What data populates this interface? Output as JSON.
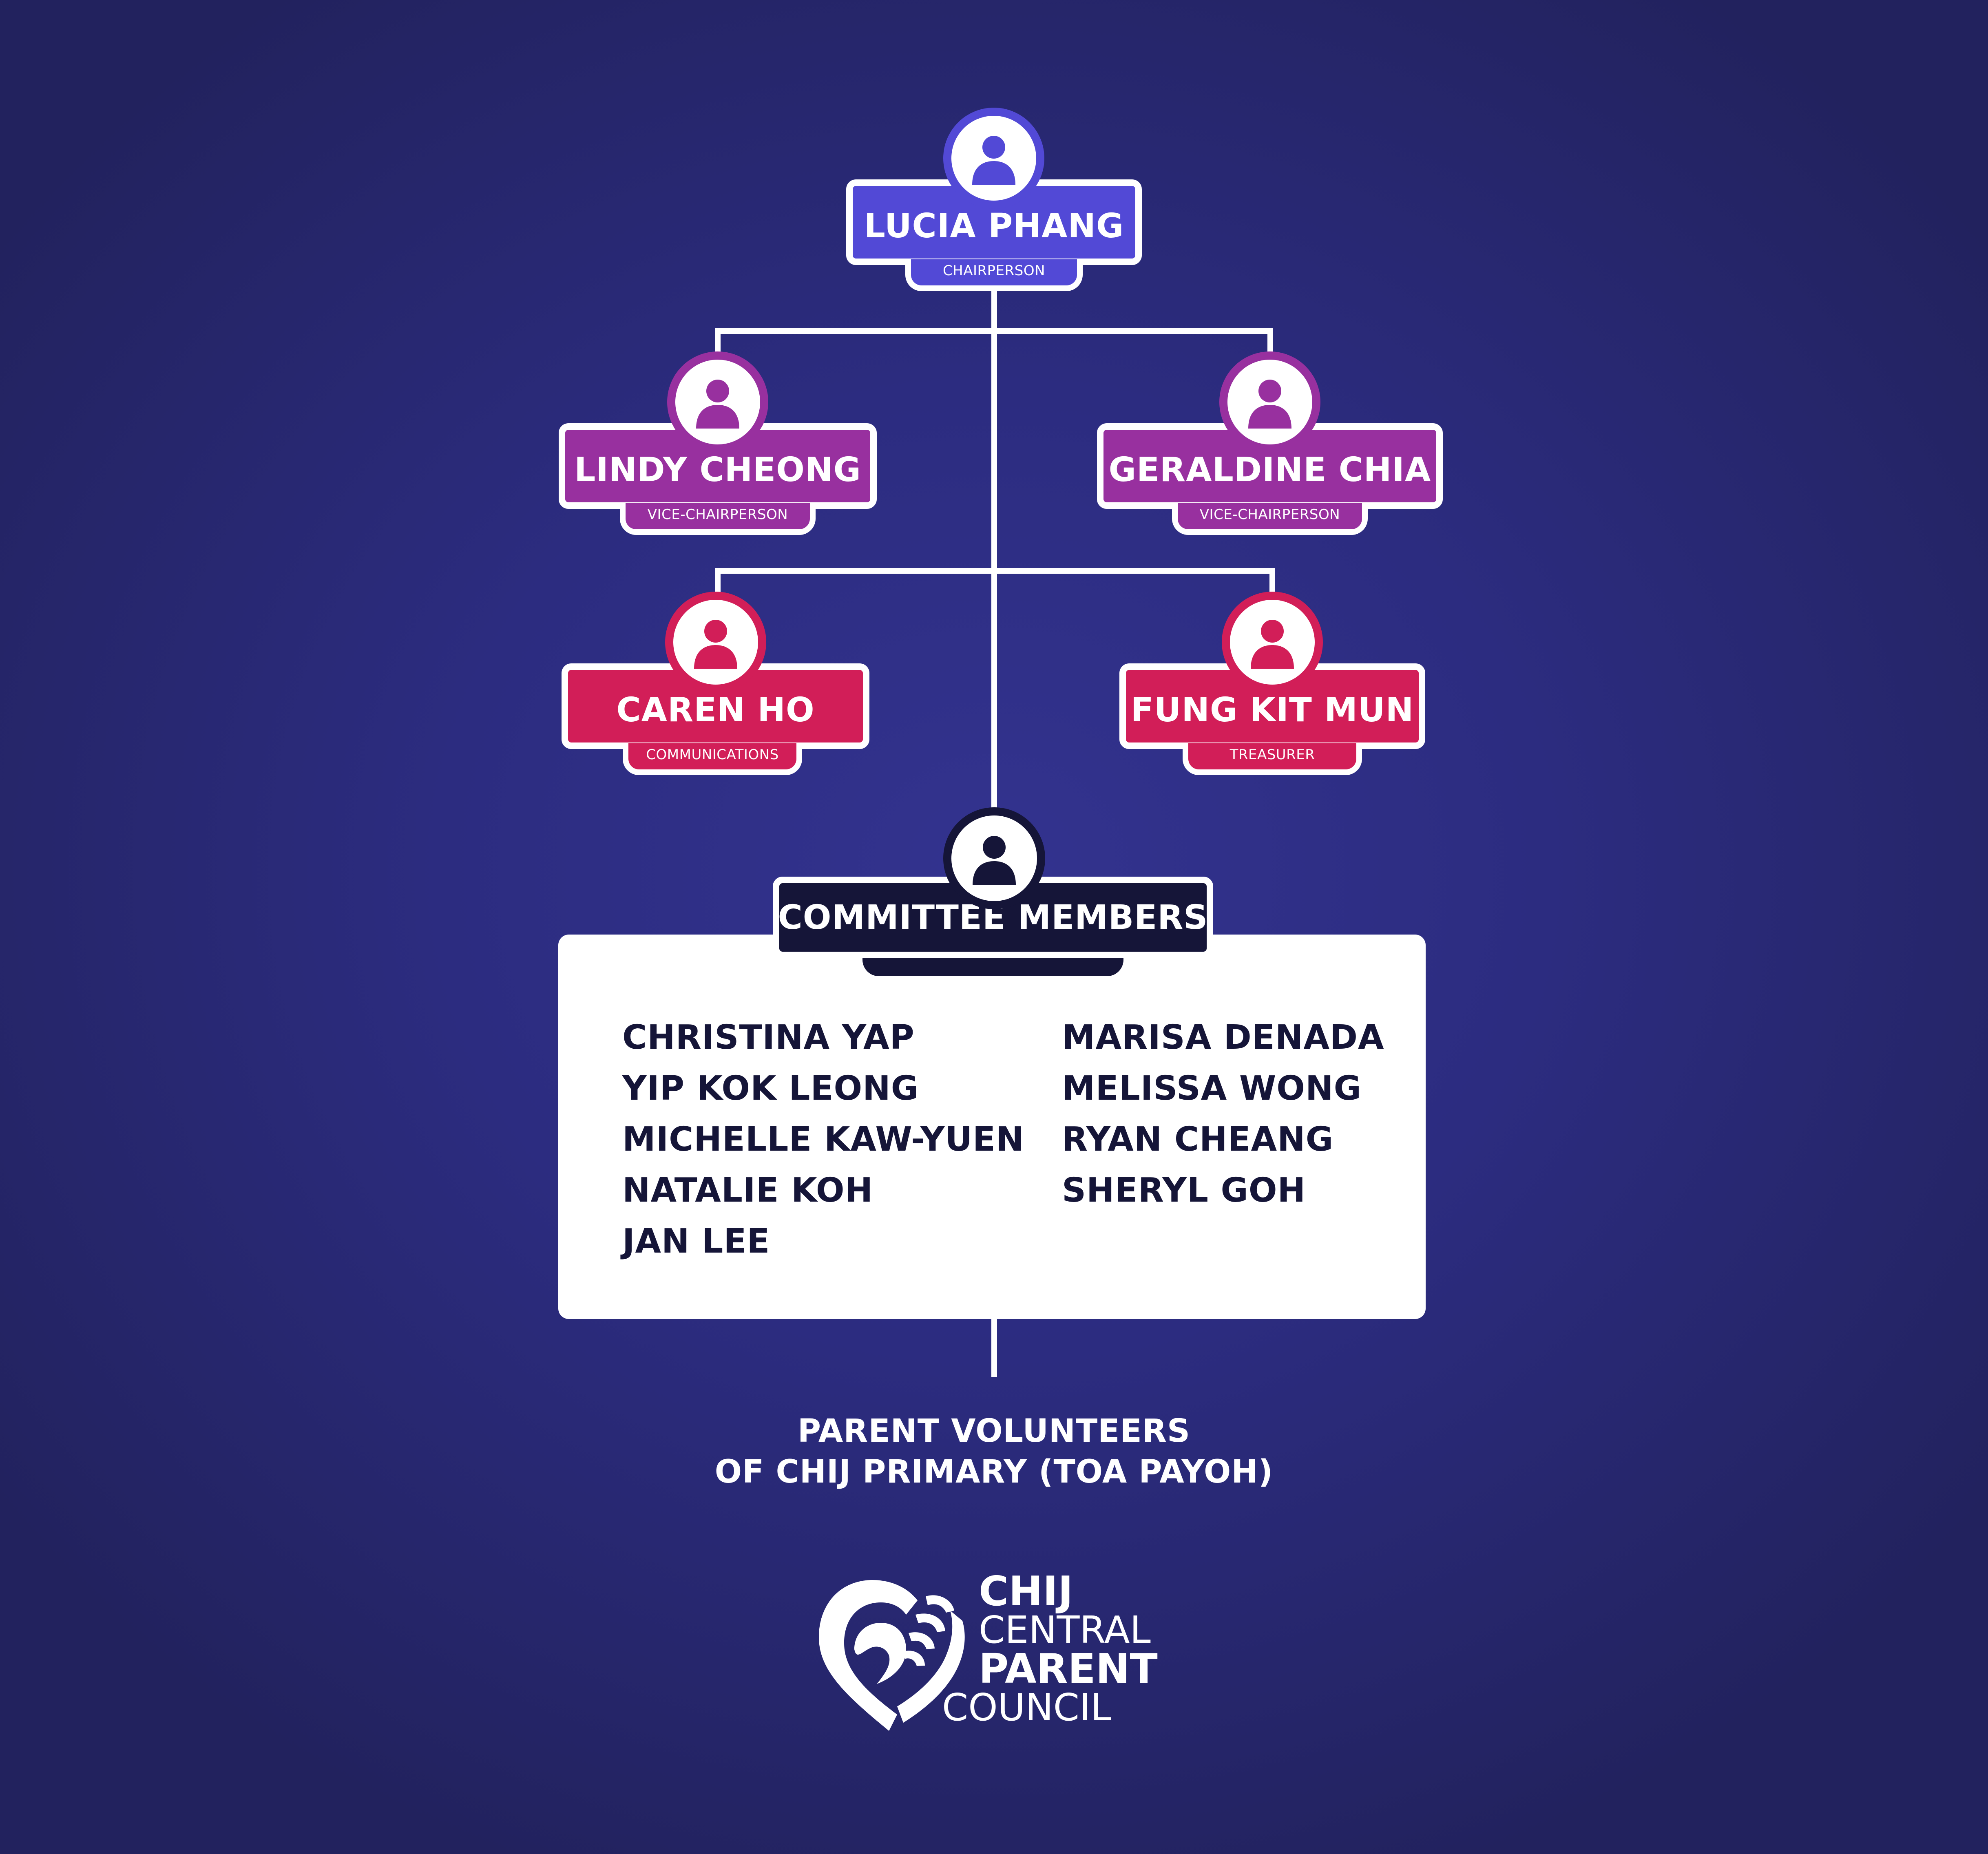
{
  "colors": {
    "chair": "#5249d6",
    "vice": "#98309f",
    "officer": "#d21e58",
    "committee": "#151538",
    "panel": "#ffffff"
  },
  "nodes": {
    "chairperson": {
      "name": "LUCIA PHANG",
      "role": "CHAIRPERSON"
    },
    "vice_left": {
      "name": "LINDY CHEONG",
      "role": "VICE-CHAIRPERSON"
    },
    "vice_right": {
      "name": "GERALDINE CHIA",
      "role": "VICE-CHAIRPERSON"
    },
    "communications": {
      "name": "CAREN HO",
      "role": "COMMUNICATIONS"
    },
    "treasurer": {
      "name": "FUNG KIT MUN",
      "role": "TREASURER"
    }
  },
  "committee": {
    "title": "COMMITTEE MEMBERS",
    "left_members": [
      "CHRISTINA YAP",
      "YIP KOK LEONG",
      "MICHELLE KAW-YUEN",
      "NATALIE KOH",
      "JAN LEE"
    ],
    "right_members": [
      "MARISA DENADA",
      "MELISSA WONG",
      "RYAN CHEANG",
      "SHERYL GOH"
    ]
  },
  "footer": {
    "line1": "PARENT VOLUNTEERS",
    "line2": "OF CHIJ PRIMARY (TOA PAYOH)"
  },
  "logo": {
    "line1": "CHIJ",
    "line2": "CENTRAL",
    "line3": "PARENT",
    "line4": "COUNCIL"
  },
  "icons": {
    "person": "person-avatar-icon",
    "logo_mark": "heart-hands-icon"
  }
}
